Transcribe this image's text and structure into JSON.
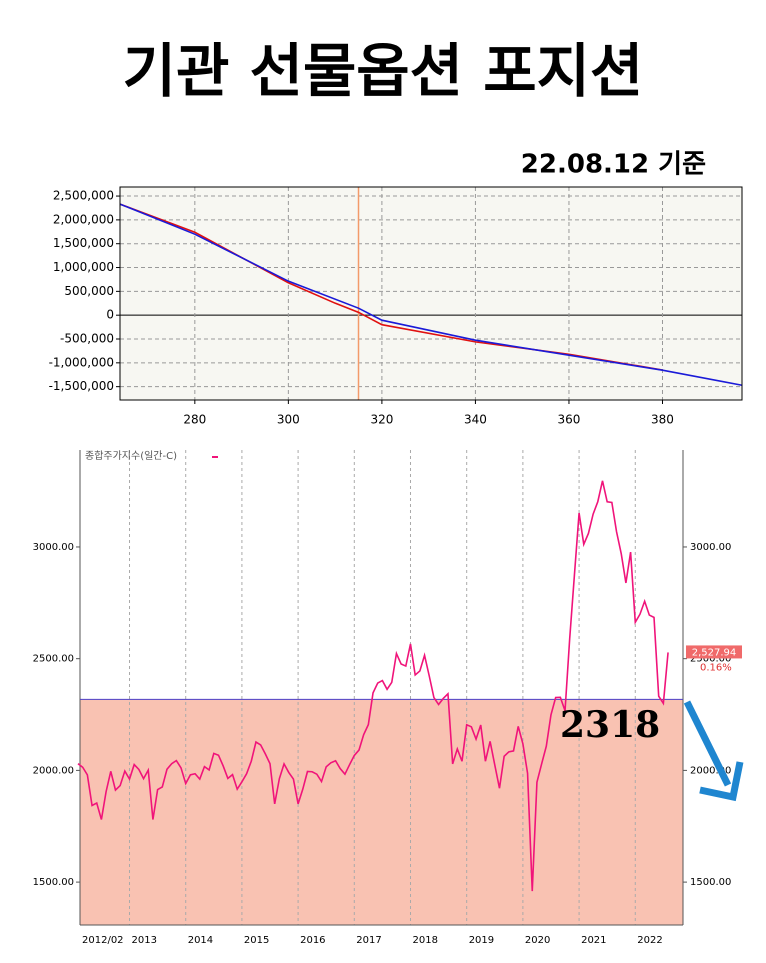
{
  "chart_data": [
    {
      "type": "line",
      "title": "기관 선물옵션 포지션",
      "subtitle": "22.08.12 기준",
      "xlim": [
        264,
        397
      ],
      "ylim": [
        -1780000,
        2690000
      ],
      "xticks": [
        280,
        300,
        320,
        340,
        360,
        380
      ],
      "yticks": [
        {
          "value": 2500000,
          "label": "2,500,000"
        },
        {
          "value": 2000000,
          "label": "2,000,000"
        },
        {
          "value": 1500000,
          "label": "1,500,000"
        },
        {
          "value": 1000000,
          "label": "1,000,000"
        },
        {
          "value": 500000,
          "label": "500,000"
        },
        0,
        {
          "value": -500000,
          "label": "-500,000"
        },
        {
          "value": -1000000,
          "label": "-1,000,000"
        },
        {
          "value": -1500000,
          "label": "-1,500,000"
        }
      ],
      "grid": true,
      "vline": 315,
      "series": [
        {
          "color": "#e01010",
          "x": [
            264,
            280,
            300,
            310,
            315,
            320,
            340,
            360,
            380
          ],
          "values": [
            2331000,
            1740000,
            680000,
            252000,
            60000,
            -200000,
            -560000,
            -820000,
            -1150000
          ]
        },
        {
          "color": "#1a1ad8",
          "x": [
            264,
            280,
            300,
            315,
            320,
            340,
            360,
            380,
            397
          ],
          "values": [
            2331000,
            1700000,
            714000,
            147000,
            -105000,
            -525000,
            -840000,
            -1155000,
            -1470000
          ]
        }
      ]
    },
    {
      "type": "line",
      "ylim": [
        1308,
        3434
      ],
      "yticks": [
        {
          "value": 3000,
          "label": "3000.00"
        },
        {
          "value": 2500,
          "label": "2500.00"
        },
        {
          "value": 2000,
          "label": "2000.00"
        },
        {
          "value": 1500,
          "label": "1500.00"
        }
      ],
      "xticks": [
        {
          "value": "2012/02",
          "label": "2012/02"
        },
        {
          "value": "2013/01",
          "label": "2013"
        },
        {
          "value": "2014/01",
          "label": "2014"
        },
        {
          "value": "2015/01",
          "label": "2015"
        },
        {
          "value": "2016/01",
          "label": "2016"
        },
        {
          "value": "2017/01",
          "label": "2017"
        },
        {
          "value": "2018/01",
          "label": "2018"
        },
        {
          "value": "2019/01",
          "label": "2019"
        },
        {
          "value": "2020/01",
          "label": "2020"
        },
        {
          "value": "2021/01",
          "label": "2021"
        },
        {
          "value": "2022/01",
          "label": "2022"
        }
      ],
      "hline": 2318,
      "last_label": "2,527.94",
      "change_label": "0.16%",
      "grid": true,
      "x": [
        "2012/02",
        "2012/03",
        "2012/04",
        "2012/05",
        "2012/06",
        "2012/07",
        "2012/08",
        "2012/09",
        "2012/10",
        "2012/11",
        "2012/12",
        "2013/01",
        "2013/02",
        "2013/03",
        "2013/04",
        "2013/05",
        "2013/06",
        "2013/07",
        "2013/08",
        "2013/09",
        "2013/10",
        "2013/11",
        "2013/12",
        "2014/01",
        "2014/02",
        "2014/03",
        "2014/04",
        "2014/05",
        "2014/06",
        "2014/07",
        "2014/08",
        "2014/09",
        "2014/10",
        "2014/11",
        "2014/12",
        "2015/01",
        "2015/02",
        "2015/03",
        "2015/04",
        "2015/05",
        "2015/06",
        "2015/07",
        "2015/08",
        "2015/09",
        "2015/10",
        "2015/11",
        "2015/12",
        "2016/01",
        "2016/02",
        "2016/03",
        "2016/04",
        "2016/05",
        "2016/06",
        "2016/07",
        "2016/08",
        "2016/09",
        "2016/10",
        "2016/11",
        "2016/12",
        "2017/01",
        "2017/02",
        "2017/03",
        "2017/04",
        "2017/05",
        "2017/06",
        "2017/07",
        "2017/08",
        "2017/09",
        "2017/10",
        "2017/11",
        "2017/12",
        "2018/01",
        "2018/02",
        "2018/03",
        "2018/04",
        "2018/05",
        "2018/06",
        "2018/07",
        "2018/08",
        "2018/09",
        "2018/10",
        "2018/11",
        "2018/12",
        "2019/01",
        "2019/02",
        "2019/03",
        "2019/04",
        "2019/05",
        "2019/06",
        "2019/07",
        "2019/08",
        "2019/09",
        "2019/10",
        "2019/11",
        "2019/12",
        "2020/01",
        "2020/02",
        "2020/03",
        "2020/04",
        "2020/05",
        "2020/06",
        "2020/07",
        "2020/08",
        "2020/09",
        "2020/10",
        "2020/11",
        "2020/12",
        "2021/01",
        "2021/02",
        "2021/03",
        "2021/04",
        "2021/05",
        "2021/06",
        "2021/07",
        "2021/08",
        "2021/09",
        "2021/10",
        "2021/11",
        "2021/12",
        "2022/01",
        "2022/02",
        "2022/03",
        "2022/04",
        "2022/05",
        "2022/06",
        "2022/07",
        "2022/08"
      ],
      "series": [
        {
          "name": "종합주가지수(일간-C)",
          "color": "#f0147a",
          "values": [
            2030,
            2014,
            1980,
            1843,
            1854,
            1780,
            1905,
            1996,
            1912,
            1932,
            1997,
            1961,
            2026,
            2004,
            1963,
            2001,
            1780,
            1914,
            1926,
            2005,
            2030,
            2044,
            2011,
            1941,
            1980,
            1985,
            1961,
            2017,
            2002,
            2076,
            2068,
            2020,
            1964,
            1981,
            1916,
            1949,
            1985,
            2041,
            2127,
            2114,
            2074,
            2030,
            1850,
            1963,
            2029,
            1991,
            1961,
            1850,
            1916,
            1995,
            1994,
            1983,
            1950,
            2016,
            2034,
            2043,
            2008,
            1983,
            2026,
            2067,
            2091,
            2160,
            2205,
            2347,
            2391,
            2402,
            2363,
            2394,
            2523,
            2476,
            2467,
            2566,
            2427,
            2445,
            2515,
            2423,
            2326,
            2295,
            2322,
            2343,
            2029,
            2096,
            2041,
            2204,
            2195,
            2140,
            2203,
            2041,
            2130,
            2024,
            1920,
            2063,
            2083,
            2087,
            2197,
            2119,
            1987,
            1460,
            1947,
            2029,
            2108,
            2249,
            2326,
            2327,
            2267,
            2591,
            2873,
            3152,
            3012,
            3061,
            3147,
            3203,
            3296,
            3202,
            3199,
            3068,
            2970,
            2839,
            2977,
            2663,
            2699,
            2757,
            2695,
            2685,
            2332,
            2300,
            2527.94
          ]
        }
      ]
    }
  ]
}
